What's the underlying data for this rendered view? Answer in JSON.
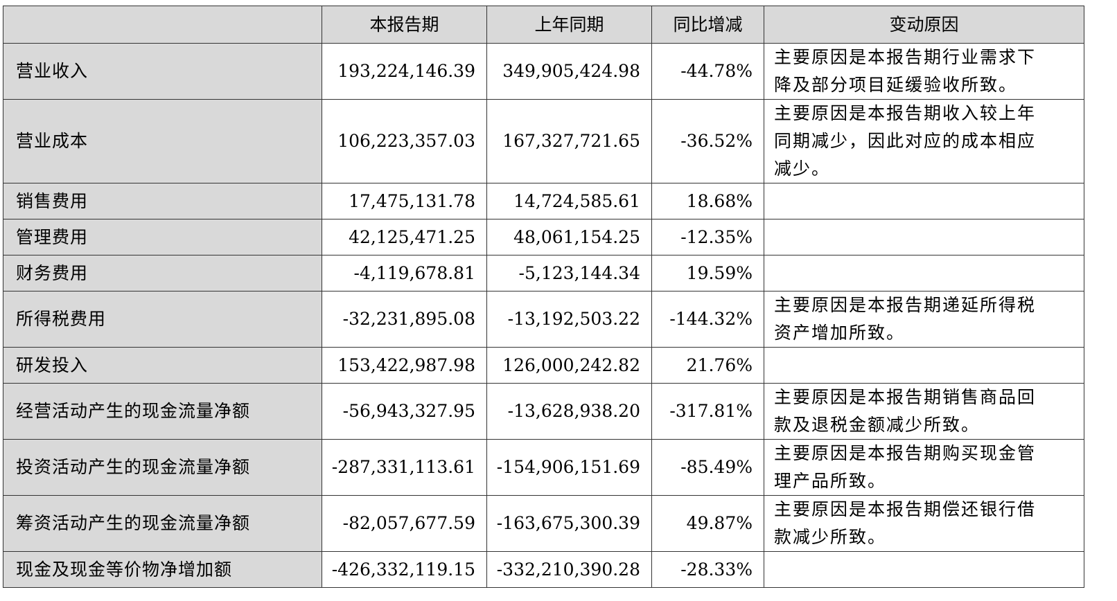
{
  "table": {
    "headers": [
      "",
      "本报告期",
      "上年同期",
      "同比增减",
      "变动原因"
    ],
    "rows": [
      {
        "item": "营业收入",
        "current": "193,224,146.39",
        "prior": "349,905,424.98",
        "change": "-44.78%",
        "reason": [
          "主要原因是本报告期行业需求下",
          "降及部分项目延缓验收所致。"
        ]
      },
      {
        "item": "营业成本",
        "current": "106,223,357.03",
        "prior": "167,327,721.65",
        "change": "-36.52%",
        "reason": [
          "主要原因是本报告期收入较上年",
          "同期减少，因此对应的成本相应",
          "减少。"
        ]
      },
      {
        "item": "销售费用",
        "current": "17,475,131.78",
        "prior": "14,724,585.61",
        "change": "18.68%",
        "reason": []
      },
      {
        "item": "管理费用",
        "current": "42,125,471.25",
        "prior": "48,061,154.25",
        "change": "-12.35%",
        "reason": []
      },
      {
        "item": "财务费用",
        "current": "-4,119,678.81",
        "prior": "-5,123,144.34",
        "change": "19.59%",
        "reason": []
      },
      {
        "item": "所得税费用",
        "current": "-32,231,895.08",
        "prior": "-13,192,503.22",
        "change": "-144.32%",
        "reason": [
          "主要原因是本报告期递延所得税",
          "资产增加所致。"
        ]
      },
      {
        "item": "研发投入",
        "current": "153,422,987.98",
        "prior": "126,000,242.82",
        "change": "21.76%",
        "reason": []
      },
      {
        "item": "经营活动产生的现金流量净额",
        "current": "-56,943,327.95",
        "prior": "-13,628,938.20",
        "change": "-317.81%",
        "reason": [
          "主要原因是本报告期销售商品回",
          "款及退税金额减少所致。"
        ]
      },
      {
        "item": "投资活动产生的现金流量净额",
        "current": "-287,331,113.61",
        "prior": "-154,906,151.69",
        "change": "-85.49%",
        "reason": [
          "主要原因是本报告期购买现金管",
          "理产品所致。"
        ]
      },
      {
        "item": "筹资活动产生的现金流量净额",
        "current": "-82,057,677.59",
        "prior": "-163,675,300.39",
        "change": "49.87%",
        "reason": [
          "主要原因是本报告期偿还银行借",
          "款减少所致。"
        ]
      },
      {
        "item": "现金及现金等价物净增加额",
        "current": "-426,332,119.15",
        "prior": "-332,210,390.28",
        "change": "-28.33%",
        "reason": []
      }
    ]
  }
}
